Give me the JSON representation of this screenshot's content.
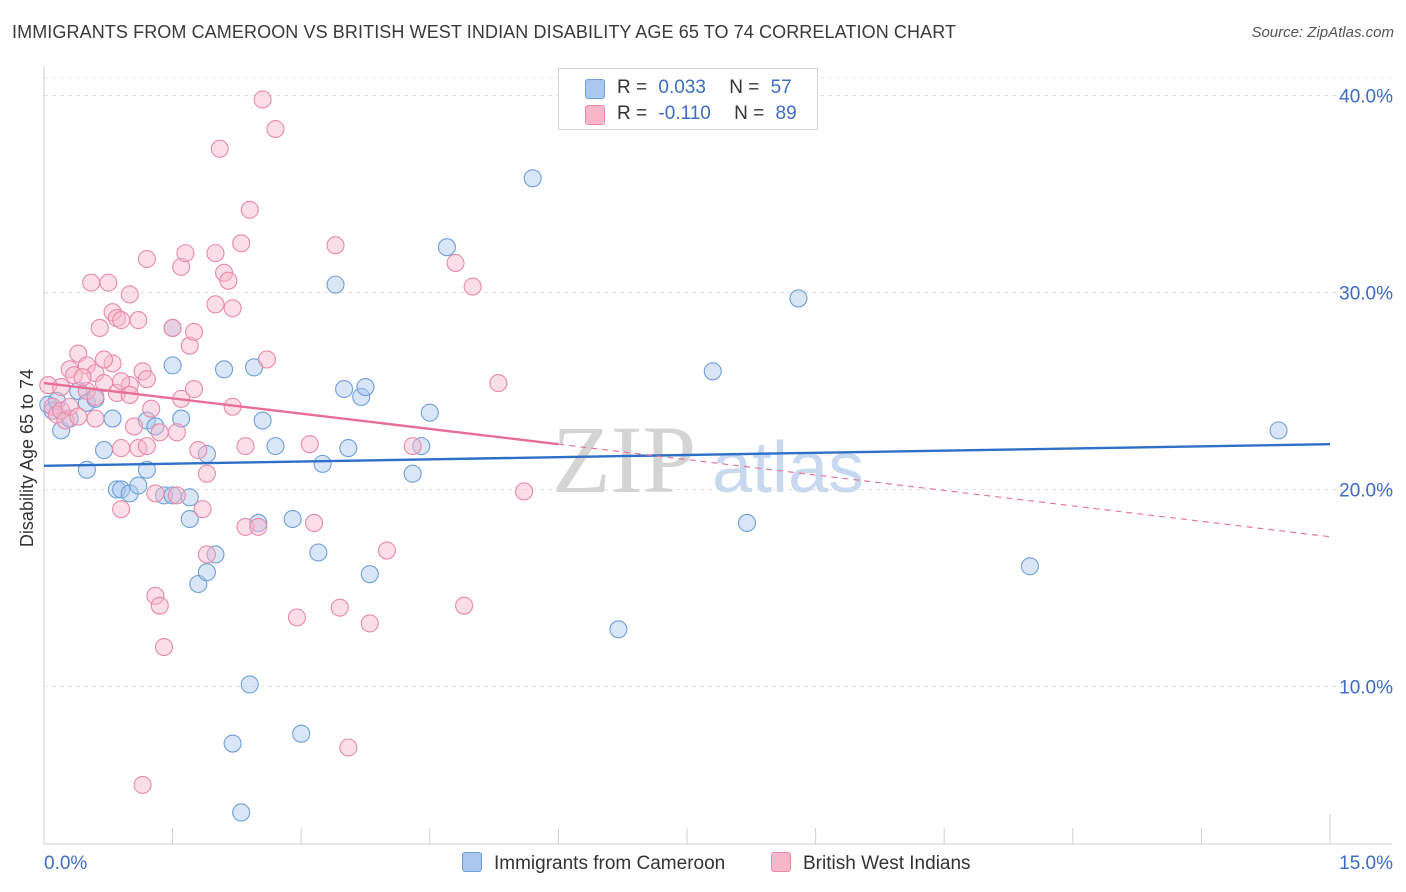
{
  "title": "IMMIGRANTS FROM CAMEROON VS BRITISH WEST INDIAN DISABILITY AGE 65 TO 74 CORRELATION CHART",
  "source": "Source: ZipAtlas.com",
  "watermark": {
    "zip": "ZIP",
    "atlas": "atlas"
  },
  "legend": {
    "rows": [
      {
        "r_label": "R =",
        "r_value": "0.033",
        "n_label": "N =",
        "n_value": "57",
        "color": "#a9c7ef",
        "border": "#6f9fd8"
      },
      {
        "r_label": "R =",
        "r_value": "-0.110",
        "n_label": "N =",
        "n_value": "89",
        "color": "#f7b6c9",
        "border": "#e98aa8"
      }
    ]
  },
  "bottom_legend": [
    {
      "label": "Immigrants from Cameroon",
      "color": "#a9c7ef",
      "border": "#6f9fd8"
    },
    {
      "label": "British West Indians",
      "color": "#f7b6c9",
      "border": "#e98aa8"
    }
  ],
  "chart_data": {
    "type": "scatter",
    "ylabel": "Disability Age 65 to 74",
    "xlim": [
      0,
      15
    ],
    "ylim": [
      2,
      41.5
    ],
    "x_tick_labels": [
      {
        "value": 0,
        "label": "0.0%"
      },
      {
        "value": 15,
        "label": "15.0%"
      }
    ],
    "x_minor_ticks": [
      1.5,
      3,
      4.5,
      6,
      7.5,
      9,
      10.5,
      12,
      13.5
    ],
    "y_ticks": [
      {
        "value": 10,
        "label": "10.0%"
      },
      {
        "value": 20,
        "label": "20.0%"
      },
      {
        "value": 30,
        "label": "30.0%"
      },
      {
        "value": 40,
        "label": "40.0%"
      }
    ],
    "series": [
      {
        "name": "Immigrants from Cameroon",
        "color": "#a9c7ef",
        "stroke": "#6f9fd8",
        "trend": {
          "x": [
            0,
            15
          ],
          "y": [
            21.2,
            22.3
          ],
          "color": "#2e6fc7"
        },
        "points": [
          [
            0.05,
            24.3
          ],
          [
            0.1,
            24.0
          ],
          [
            0.15,
            24.5
          ],
          [
            0.2,
            23.0
          ],
          [
            0.3,
            23.6
          ],
          [
            0.4,
            25.0
          ],
          [
            0.5,
            24.4
          ],
          [
            0.6,
            24.6
          ],
          [
            0.5,
            21.0
          ],
          [
            0.7,
            22.0
          ],
          [
            0.8,
            23.6
          ],
          [
            0.85,
            20.0
          ],
          [
            0.9,
            20.0
          ],
          [
            1.0,
            19.8
          ],
          [
            1.1,
            20.2
          ],
          [
            1.2,
            21.0
          ],
          [
            1.2,
            23.5
          ],
          [
            1.3,
            23.2
          ],
          [
            1.4,
            19.7
          ],
          [
            1.5,
            28.2
          ],
          [
            1.5,
            19.7
          ],
          [
            1.5,
            26.3
          ],
          [
            1.6,
            23.6
          ],
          [
            1.7,
            19.6
          ],
          [
            1.7,
            18.5
          ],
          [
            1.9,
            21.8
          ],
          [
            1.8,
            15.2
          ],
          [
            1.9,
            15.8
          ],
          [
            2.0,
            16.7
          ],
          [
            2.1,
            26.1
          ],
          [
            2.2,
            7.1
          ],
          [
            2.3,
            3.6
          ],
          [
            2.4,
            10.1
          ],
          [
            2.45,
            26.2
          ],
          [
            2.5,
            18.3
          ],
          [
            2.55,
            23.5
          ],
          [
            2.7,
            22.2
          ],
          [
            2.9,
            18.5
          ],
          [
            3.0,
            7.6
          ],
          [
            3.2,
            16.8
          ],
          [
            3.25,
            21.3
          ],
          [
            3.4,
            30.4
          ],
          [
            3.5,
            25.1
          ],
          [
            3.55,
            22.1
          ],
          [
            3.7,
            24.7
          ],
          [
            3.75,
            25.2
          ],
          [
            3.8,
            15.7
          ],
          [
            4.3,
            20.8
          ],
          [
            4.4,
            22.2
          ],
          [
            4.5,
            23.9
          ],
          [
            4.7,
            32.3
          ],
          [
            5.7,
            35.8
          ],
          [
            6.7,
            12.9
          ],
          [
            7.8,
            26.0
          ],
          [
            8.2,
            18.3
          ],
          [
            8.8,
            29.7
          ],
          [
            11.5,
            16.1
          ],
          [
            14.4,
            23.0
          ]
        ]
      },
      {
        "name": "British West Indians",
        "color": "#f7b6c9",
        "stroke": "#e98aa8",
        "trend": {
          "x": [
            0,
            6.0
          ],
          "y": [
            25.4,
            22.3
          ],
          "color": "#e86e97"
        },
        "trend_dashed": {
          "x": [
            6.0,
            15
          ],
          "y": [
            22.3,
            17.6
          ]
        },
        "points": [
          [
            0.05,
            25.3
          ],
          [
            0.1,
            24.2
          ],
          [
            0.15,
            23.8
          ],
          [
            0.2,
            24.0
          ],
          [
            0.25,
            23.5
          ],
          [
            0.3,
            26.1
          ],
          [
            0.35,
            25.8
          ],
          [
            0.4,
            26.9
          ],
          [
            0.5,
            26.3
          ],
          [
            0.5,
            25.0
          ],
          [
            0.55,
            30.5
          ],
          [
            0.6,
            25.9
          ],
          [
            0.6,
            23.6
          ],
          [
            0.65,
            28.2
          ],
          [
            0.7,
            25.4
          ],
          [
            0.75,
            30.5
          ],
          [
            0.8,
            29.0
          ],
          [
            0.8,
            26.4
          ],
          [
            0.85,
            28.7
          ],
          [
            0.85,
            24.9
          ],
          [
            0.9,
            28.6
          ],
          [
            0.9,
            22.1
          ],
          [
            0.9,
            19.0
          ],
          [
            1.0,
            29.9
          ],
          [
            1.0,
            25.3
          ],
          [
            1.05,
            23.2
          ],
          [
            1.1,
            28.6
          ],
          [
            1.1,
            22.1
          ],
          [
            1.15,
            26.0
          ],
          [
            1.15,
            5.0
          ],
          [
            1.2,
            25.6
          ],
          [
            1.2,
            31.7
          ],
          [
            1.25,
            24.1
          ],
          [
            1.3,
            19.8
          ],
          [
            1.35,
            22.9
          ],
          [
            1.3,
            14.6
          ],
          [
            1.35,
            14.1
          ],
          [
            1.4,
            12.0
          ],
          [
            1.5,
            28.2
          ],
          [
            1.55,
            22.9
          ],
          [
            1.55,
            19.7
          ],
          [
            1.6,
            31.3
          ],
          [
            1.65,
            32.0
          ],
          [
            1.7,
            27.3
          ],
          [
            1.75,
            28.0
          ],
          [
            1.75,
            25.1
          ],
          [
            1.8,
            22.0
          ],
          [
            1.85,
            19.0
          ],
          [
            1.9,
            16.7
          ],
          [
            1.9,
            20.8
          ],
          [
            2.0,
            32.0
          ],
          [
            2.0,
            29.4
          ],
          [
            2.05,
            37.3
          ],
          [
            2.1,
            31.0
          ],
          [
            2.15,
            30.6
          ],
          [
            2.2,
            24.2
          ],
          [
            2.2,
            29.2
          ],
          [
            2.3,
            32.5
          ],
          [
            2.35,
            22.2
          ],
          [
            2.35,
            18.1
          ],
          [
            2.4,
            34.2
          ],
          [
            2.5,
            18.1
          ],
          [
            2.55,
            39.8
          ],
          [
            2.6,
            26.6
          ],
          [
            2.7,
            38.3
          ],
          [
            2.95,
            13.5
          ],
          [
            3.1,
            22.3
          ],
          [
            3.15,
            18.3
          ],
          [
            3.4,
            32.4
          ],
          [
            3.45,
            14.0
          ],
          [
            3.55,
            6.9
          ],
          [
            3.8,
            13.2
          ],
          [
            4.0,
            16.9
          ],
          [
            4.3,
            22.2
          ],
          [
            4.8,
            31.5
          ],
          [
            4.9,
            14.1
          ],
          [
            5.0,
            30.3
          ],
          [
            5.3,
            25.4
          ],
          [
            5.6,
            19.9
          ],
          [
            0.2,
            25.2
          ],
          [
            0.3,
            24.2
          ],
          [
            0.4,
            23.7
          ],
          [
            0.45,
            25.7
          ],
          [
            0.6,
            24.7
          ],
          [
            0.7,
            26.6
          ],
          [
            0.9,
            25.5
          ],
          [
            1.0,
            24.8
          ],
          [
            1.2,
            22.2
          ],
          [
            1.6,
            24.6
          ]
        ]
      }
    ]
  }
}
